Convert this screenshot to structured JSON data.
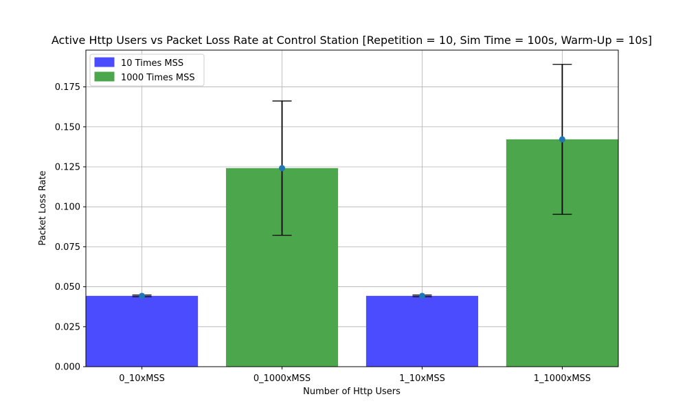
{
  "chart_data": {
    "type": "bar",
    "title": "Active Http Users vs Packet Loss Rate at Control Station [Repetition = 10, Sim Time = 100s, Warm-Up = 10s]",
    "xlabel": "Number of Http Users",
    "ylabel": "Packet Loss Rate",
    "ylim": [
      0,
      0.198
    ],
    "yticks": [
      "0.000",
      "0.025",
      "0.050",
      "0.075",
      "0.100",
      "0.125",
      "0.150",
      "0.175"
    ],
    "categories": [
      "0_10xMSS",
      "0_1000xMSS",
      "1_10xMSS",
      "1_1000xMSS"
    ],
    "values": [
      0.0443,
      0.1242,
      0.0443,
      0.1422
    ],
    "err_low": [
      0.0438,
      0.0822,
      0.0438,
      0.0953
    ],
    "err_high": [
      0.0448,
      0.1662,
      0.0448,
      0.1891
    ],
    "bar_series": [
      0,
      1,
      0,
      1
    ],
    "series": [
      {
        "name": "10 Times MSS",
        "color": "#4c4cff"
      },
      {
        "name": "1000 Times MSS",
        "color": "#4ca64c"
      }
    ],
    "marker_color": "#1f77b4",
    "grid": true,
    "legend_position": "top-left"
  }
}
